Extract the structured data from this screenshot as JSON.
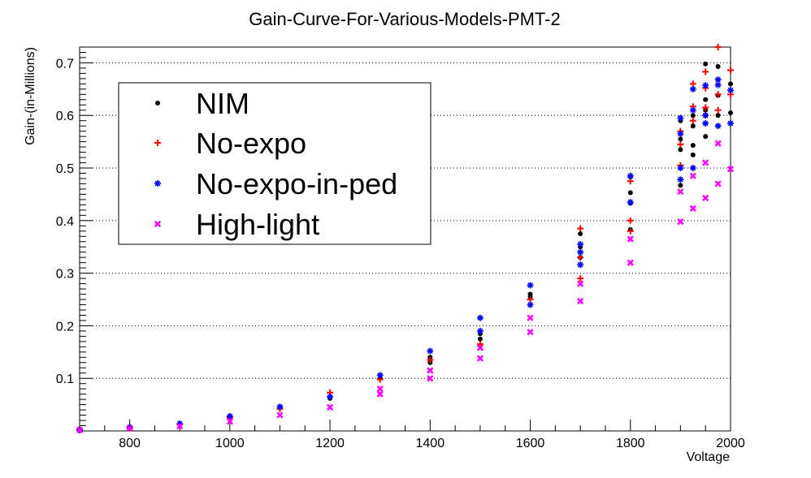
{
  "chart_data": {
    "type": "scatter",
    "title": "Gain-Curve-For-Various-Models-PMT-2",
    "xlabel": "Voltage",
    "ylabel": "Gain-(in-Millions)",
    "xlim": [
      700,
      2000
    ],
    "ylim": [
      0,
      0.73
    ],
    "xticks": [
      800,
      1000,
      1200,
      1400,
      1600,
      1800,
      2000
    ],
    "yticks": [
      0.1,
      0.2,
      0.3,
      0.4,
      0.5,
      0.6,
      0.7
    ],
    "ytick_labels": [
      "0.1",
      "0.2",
      "0.3",
      "0.4",
      "0.5",
      "0.6",
      "0.7"
    ],
    "grid": "horizontal dotted",
    "legend_position": "top-left",
    "series": [
      {
        "name": "NIM",
        "marker": "circle",
        "color": "#000000",
        "points": [
          [
            700,
            0.002
          ],
          [
            800,
            0.007
          ],
          [
            900,
            0.013
          ],
          [
            1000,
            0.027
          ],
          [
            1100,
            0.044
          ],
          [
            1200,
            0.062
          ],
          [
            1300,
            0.1
          ],
          [
            1400,
            0.14
          ],
          [
            1400,
            0.13
          ],
          [
            1500,
            0.185
          ],
          [
            1500,
            0.175
          ],
          [
            1600,
            0.26
          ],
          [
            1600,
            0.255
          ],
          [
            1700,
            0.375
          ],
          [
            1700,
            0.35
          ],
          [
            1700,
            0.33
          ],
          [
            1800,
            0.483
          ],
          [
            1800,
            0.453
          ],
          [
            1800,
            0.433
          ],
          [
            1800,
            0.383
          ],
          [
            1900,
            0.59
          ],
          [
            1900,
            0.555
          ],
          [
            1900,
            0.535
          ],
          [
            1900,
            0.467
          ],
          [
            1925,
            0.6
          ],
          [
            1925,
            0.58
          ],
          [
            1925,
            0.543
          ],
          [
            1925,
            0.525
          ],
          [
            1950,
            0.698
          ],
          [
            1950,
            0.63
          ],
          [
            1950,
            0.61
          ],
          [
            1950,
            0.6
          ],
          [
            1950,
            0.56
          ],
          [
            1975,
            0.693
          ],
          [
            1975,
            0.638
          ],
          [
            1975,
            0.6
          ],
          [
            2000,
            0.66
          ],
          [
            2000,
            0.605
          ]
        ]
      },
      {
        "name": "No-expo",
        "marker": "plus",
        "color": "#ff0000",
        "points": [
          [
            700,
            0.002
          ],
          [
            800,
            0.006
          ],
          [
            900,
            0.012
          ],
          [
            1000,
            0.025
          ],
          [
            1100,
            0.042
          ],
          [
            1200,
            0.073
          ],
          [
            1300,
            0.098
          ],
          [
            1400,
            0.135
          ],
          [
            1500,
            0.165
          ],
          [
            1600,
            0.25
          ],
          [
            1700,
            0.385
          ],
          [
            1700,
            0.33
          ],
          [
            1700,
            0.29
          ],
          [
            1800,
            0.475
          ],
          [
            1800,
            0.4
          ],
          [
            1800,
            0.38
          ],
          [
            1900,
            0.57
          ],
          [
            1900,
            0.545
          ],
          [
            1900,
            0.505
          ],
          [
            1925,
            0.66
          ],
          [
            1925,
            0.617
          ],
          [
            1925,
            0.59
          ],
          [
            1950,
            0.683
          ],
          [
            1950,
            0.652
          ],
          [
            1950,
            0.615
          ],
          [
            1975,
            0.73
          ],
          [
            1975,
            0.64
          ],
          [
            1975,
            0.61
          ],
          [
            2000,
            0.686
          ],
          [
            2000,
            0.64
          ]
        ]
      },
      {
        "name": "No-expo-in-ped",
        "marker": "star",
        "color": "#0000ff",
        "points": [
          [
            700,
            0.002
          ],
          [
            800,
            0.007
          ],
          [
            900,
            0.014
          ],
          [
            1000,
            0.028
          ],
          [
            1100,
            0.046
          ],
          [
            1200,
            0.065
          ],
          [
            1300,
            0.106
          ],
          [
            1400,
            0.152
          ],
          [
            1500,
            0.215
          ],
          [
            1500,
            0.19
          ],
          [
            1600,
            0.277
          ],
          [
            1600,
            0.24
          ],
          [
            1700,
            0.355
          ],
          [
            1700,
            0.34
          ],
          [
            1700,
            0.316
          ],
          [
            1800,
            0.485
          ],
          [
            1800,
            0.435
          ],
          [
            1900,
            0.595
          ],
          [
            1900,
            0.565
          ],
          [
            1900,
            0.5
          ],
          [
            1900,
            0.478
          ],
          [
            1925,
            0.65
          ],
          [
            1925,
            0.61
          ],
          [
            1925,
            0.5
          ],
          [
            1950,
            0.657
          ],
          [
            1950,
            0.6
          ],
          [
            1950,
            0.585
          ],
          [
            1975,
            0.668
          ],
          [
            1975,
            0.658
          ],
          [
            1975,
            0.58
          ],
          [
            2000,
            0.648
          ],
          [
            2000,
            0.585
          ]
        ]
      },
      {
        "name": "High-light",
        "marker": "cross",
        "color": "#ff00ff",
        "points": [
          [
            700,
            0.002
          ],
          [
            800,
            0.005
          ],
          [
            900,
            0.009
          ],
          [
            1000,
            0.018
          ],
          [
            1100,
            0.03
          ],
          [
            1200,
            0.045
          ],
          [
            1300,
            0.07
          ],
          [
            1300,
            0.08
          ],
          [
            1400,
            0.1
          ],
          [
            1400,
            0.115
          ],
          [
            1500,
            0.138
          ],
          [
            1500,
            0.158
          ],
          [
            1600,
            0.188
          ],
          [
            1600,
            0.215
          ],
          [
            1700,
            0.247
          ],
          [
            1700,
            0.28
          ],
          [
            1800,
            0.32
          ],
          [
            1800,
            0.365
          ],
          [
            1900,
            0.398
          ],
          [
            1900,
            0.455
          ],
          [
            1925,
            0.423
          ],
          [
            1925,
            0.485
          ],
          [
            1950,
            0.443
          ],
          [
            1950,
            0.51
          ],
          [
            1975,
            0.47
          ],
          [
            1975,
            0.547
          ],
          [
            2000,
            0.498
          ]
        ]
      }
    ]
  }
}
